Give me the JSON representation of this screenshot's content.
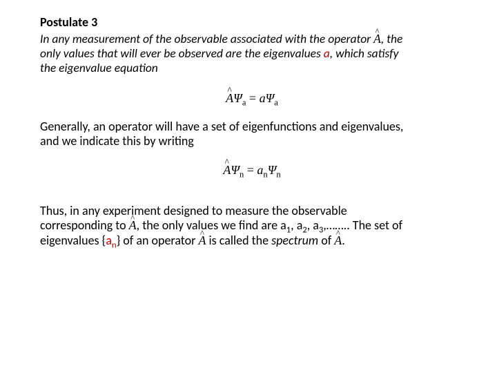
{
  "postulate": {
    "title": "Postulate 3",
    "line1_a": "In any measurement of the observable associated with the operator ",
    "line1_b": ", the",
    "line2_a": "only values that will ever be observed are the eigenvalues ",
    "red_a": "a",
    "line2_b": ", which satisfy",
    "line3": "the eigenvalue equation"
  },
  "eq1": {
    "A": "A",
    "psi": "Ψ",
    "sub": "a",
    "eq": " = ",
    "rhs_a": "a",
    "rhs_psi": "Ψ"
  },
  "general": {
    "line1": "Generally, an operator will have a set of eigenfunctions and  eigenvalues,",
    "line2": "and we indicate this by writing"
  },
  "eq2": {
    "A": "A",
    "psi": "Ψ",
    "sub": "n",
    "eq": " = ",
    "rhs_a": "a",
    "rhs_psi": "Ψ"
  },
  "conclusion": {
    "l1a": "Thus,  in  any  experiment  designed  to  measure  the  observable",
    "l2a": "corresponding to ",
    "l2b": ", the only values we find are a",
    "s1": "1",
    "c": ", a",
    "s2": "2",
    "s3": "3",
    "l2c": ",…….. The set of",
    "l3a": "eigenvalues {",
    "red_an": "a",
    "red_n": "n",
    "l3b": "} of an operator ",
    "l3c": " is called the ",
    "spectrum": "spectrum",
    "l3d": " of ",
    "period": "."
  }
}
